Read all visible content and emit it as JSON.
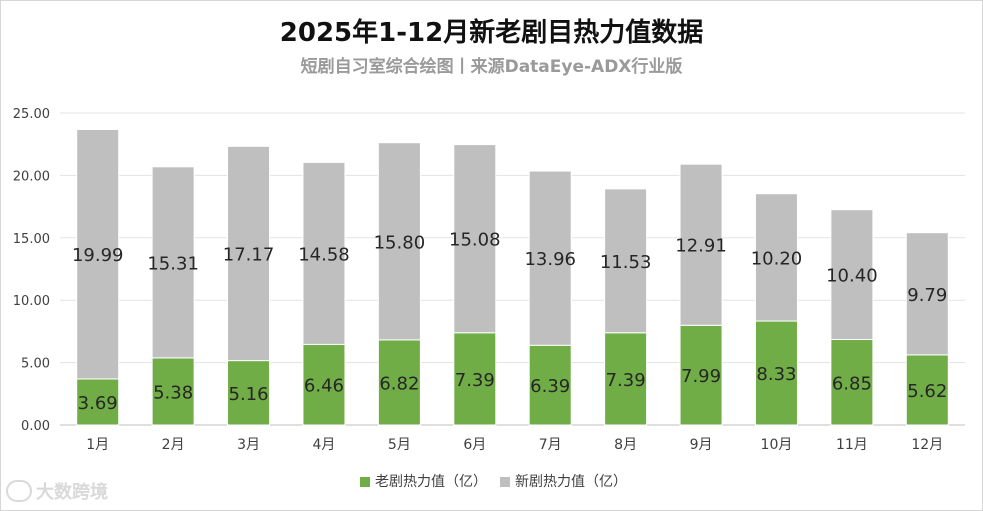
{
  "title": "2025年1-12月新老剧目热力值数据",
  "subtitle": "短剧自习室综合绘图丨来源DataEye-ADX行业版",
  "watermark_text": "大数跨境",
  "chart_data": {
    "type": "bar",
    "stacked": true,
    "categories": [
      "1月",
      "2月",
      "3月",
      "4月",
      "5月",
      "6月",
      "7月",
      "8月",
      "9月",
      "10月",
      "11月",
      "12月"
    ],
    "series": [
      {
        "name": "老剧热力值（亿）",
        "color": "#70ad47",
        "values": [
          3.69,
          5.38,
          5.16,
          6.46,
          6.82,
          7.39,
          6.39,
          7.39,
          7.99,
          8.33,
          6.85,
          5.62
        ],
        "labels": [
          "3.69",
          "5.38",
          "5.16",
          "6.46",
          "6.82",
          "7.39",
          "6.39",
          "7.39",
          "7.99",
          "8.33",
          "6.85",
          "5.62"
        ]
      },
      {
        "name": "新剧热力值（亿）",
        "color": "#bfbfbf",
        "values": [
          19.99,
          15.31,
          17.17,
          14.58,
          15.8,
          15.08,
          13.96,
          11.53,
          12.91,
          10.2,
          10.4,
          9.79
        ],
        "labels": [
          "19.99",
          "15.31",
          "17.17",
          "14.58",
          "15.80",
          "15.08",
          "13.96",
          "11.53",
          "12.91",
          "10.20",
          "10.40",
          "9.79"
        ]
      }
    ],
    "ylim": [
      0,
      25
    ],
    "yticks": [
      "0.00",
      "5.00",
      "10.00",
      "15.00",
      "20.00",
      "25.00"
    ],
    "grid": true,
    "legend_position": "bottom"
  }
}
